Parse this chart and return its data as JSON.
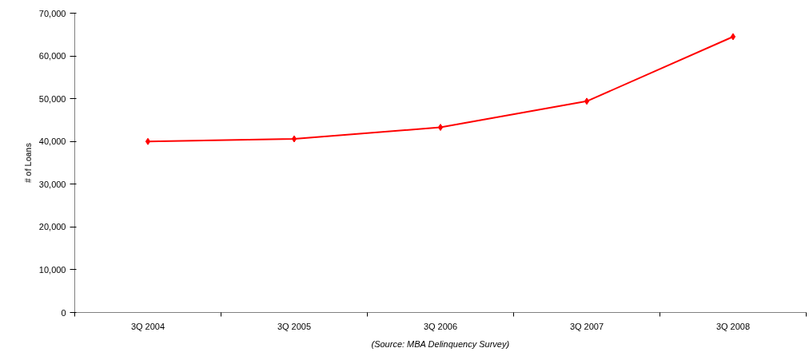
{
  "chart_data": {
    "type": "line",
    "ylabel": "# of Loans",
    "categories": [
      "3Q 2004",
      "3Q 2005",
      "3Q 2006",
      "3Q 2007",
      "3Q 2008"
    ],
    "series": [
      {
        "color": "#ff0000",
        "values": [
          40000,
          40600,
          43300,
          49400,
          64500
        ]
      }
    ],
    "ylim": [
      0,
      70000
    ],
    "yticks": [
      0,
      {
        "value": 10000,
        "label": "10,000"
      },
      {
        "value": 20000,
        "label": "20,000"
      },
      {
        "value": 30000,
        "label": "30,000"
      },
      {
        "value": 40000,
        "label": "40,000"
      },
      {
        "value": 50000,
        "label": "50,000"
      },
      {
        "value": 60000,
        "label": "60,000"
      },
      {
        "value": 70000,
        "label": "70,000"
      }
    ],
    "grid": false,
    "marker": "diamond",
    "line_style": "solid",
    "annotations": [
      "(Source: MBA Delinquency Survey)"
    ]
  }
}
